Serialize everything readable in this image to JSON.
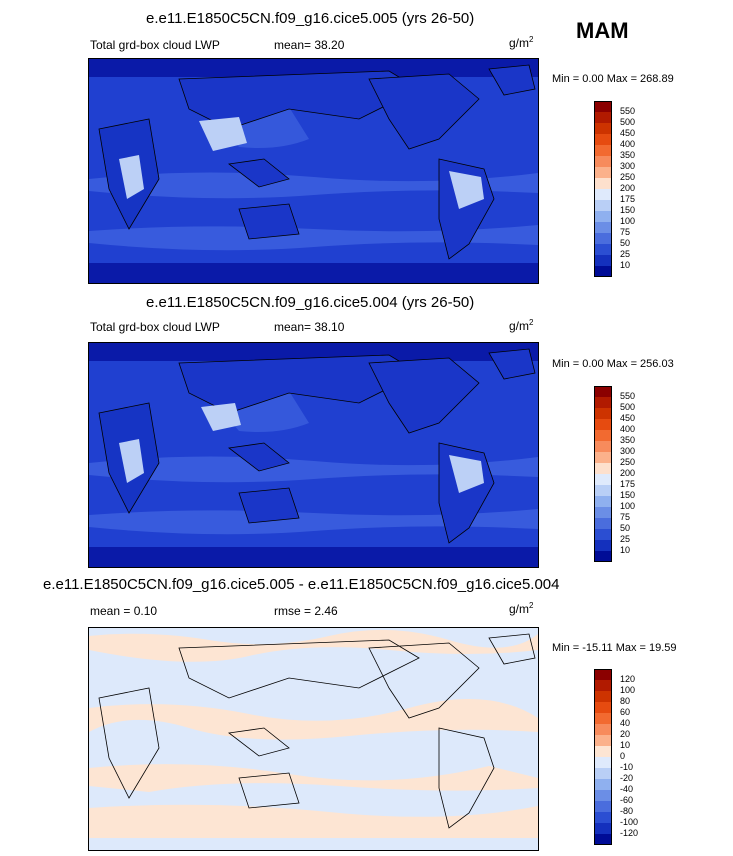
{
  "season": "MAM",
  "panels": [
    {
      "title": "e.e11.E1850C5CN.f09_g16.cice5.005 (yrs 26-50)",
      "left_label": "Total grd-box cloud LWP",
      "mean_label": "mean=  38.20",
      "units_base": "g/m",
      "units_sup": "2",
      "minmax": "Min =   0.00 Max = 268.89",
      "colorbar": {
        "levels": [
          "550",
          "500",
          "450",
          "400",
          "350",
          "300",
          "250",
          "200",
          "175",
          "150",
          "100",
          "75",
          "50",
          "25",
          "10"
        ],
        "colors": [
          "#8b0000",
          "#b11a00",
          "#cd3300",
          "#e64b10",
          "#f26a30",
          "#f78b5c",
          "#fbb18b",
          "#fde0cd",
          "#dfeafc",
          "#b9cff6",
          "#8fb0ef",
          "#6b8ee6",
          "#4a6ddd",
          "#2b4ed2",
          "#1430bd",
          "#000c96"
        ]
      }
    },
    {
      "title": "e.e11.E1850C5CN.f09_g16.cice5.004 (yrs 26-50)",
      "left_label": "Total grd-box cloud LWP",
      "mean_label": "mean=  38.10",
      "units_base": "g/m",
      "units_sup": "2",
      "minmax": "Min =   0.00 Max = 256.03",
      "colorbar": {
        "levels": [
          "550",
          "500",
          "450",
          "400",
          "350",
          "300",
          "250",
          "200",
          "175",
          "150",
          "100",
          "75",
          "50",
          "25",
          "10"
        ],
        "colors": [
          "#8b0000",
          "#b11a00",
          "#cd3300",
          "#e64b10",
          "#f26a30",
          "#f78b5c",
          "#fbb18b",
          "#fde0cd",
          "#dfeafc",
          "#b9cff6",
          "#8fb0ef",
          "#6b8ee6",
          "#4a6ddd",
          "#2b4ed2",
          "#1430bd",
          "#000c96"
        ]
      }
    },
    {
      "title": "e.e11.E1850C5CN.f09_g16.cice5.005 - e.e11.E1850C5CN.f09_g16.cice5.004",
      "left_label": "mean =   0.10",
      "mean_label": "rmse =   2.46",
      "units_base": "g/m",
      "units_sup": "2",
      "minmax": "Min = -15.11 Max =  19.59",
      "colorbar": {
        "levels": [
          "120",
          "100",
          "80",
          "60",
          "40",
          "20",
          "10",
          "0",
          "-10",
          "-20",
          "-40",
          "-60",
          "-80",
          "-100",
          "-120"
        ],
        "colors": [
          "#8b0000",
          "#b11a00",
          "#cd3300",
          "#e64b10",
          "#f26a30",
          "#f78b5c",
          "#fbb18b",
          "#fde5d3",
          "#dfeafc",
          "#b9cff6",
          "#8fb0ef",
          "#6b8ee6",
          "#4a6ddd",
          "#2b4ed2",
          "#1430bd",
          "#000c96"
        ]
      }
    }
  ],
  "colors": {
    "ocean_base": "#2040d0",
    "ocean_dark": "#0a1aa8",
    "ocean_light": "#3f62e0",
    "land_highlight": "#bcd0f6",
    "diff_bg": "#dde9fb",
    "diff_pos": "#fde5d3"
  }
}
